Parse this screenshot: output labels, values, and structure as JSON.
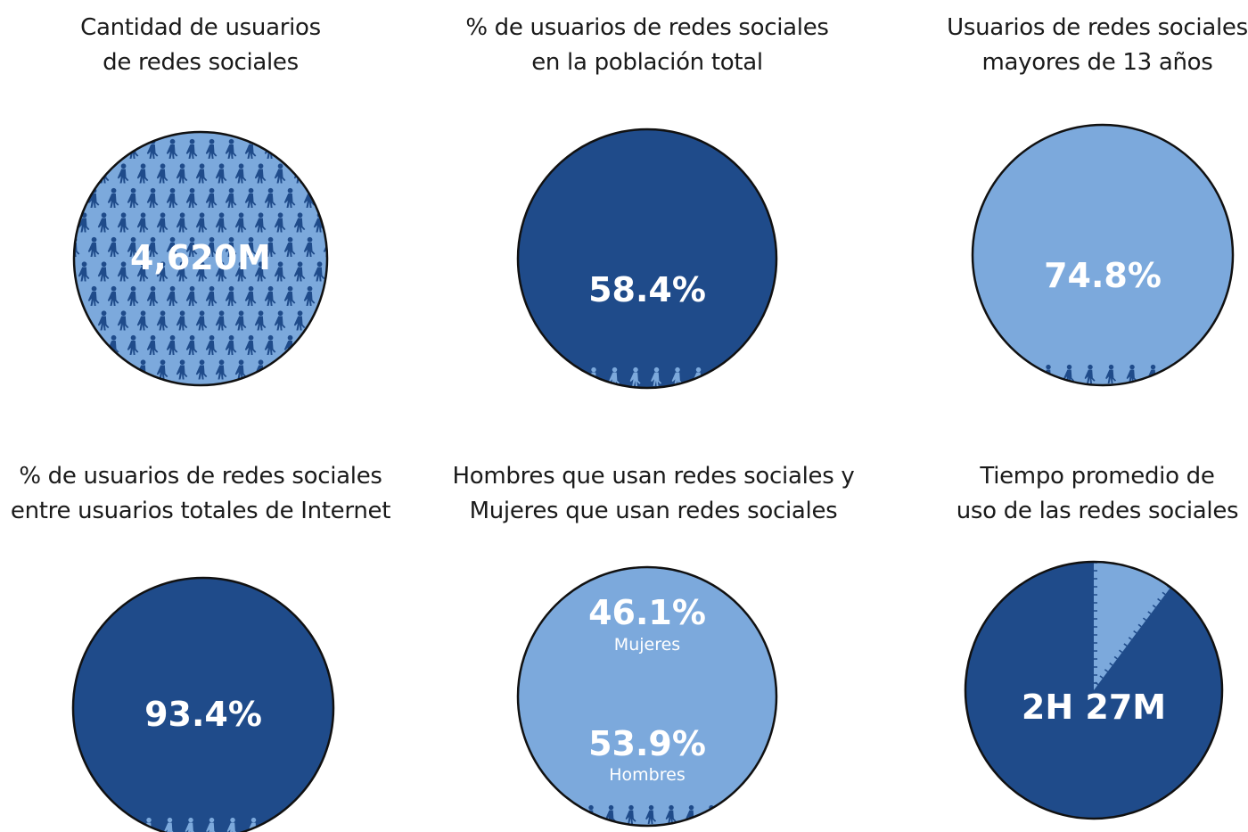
{
  "colors": {
    "dark": "#1f4b8a",
    "light": "#7ca9dc",
    "outline": "#111111",
    "text": "#ffffff"
  },
  "icons": {
    "person": "walking-person-icon"
  },
  "chart_data": [
    {
      "type": "pie",
      "title_lines": [
        "Cantidad de usuarios",
        "de redes sociales"
      ],
      "value_label": "4,620M",
      "value": 4620,
      "unit": "M"
    },
    {
      "type": "pie",
      "title_lines": [
        "% de usuarios de redes sociales",
        "en la población total"
      ],
      "value_label": "58.4%",
      "value": 58.4
    },
    {
      "type": "pie",
      "title_lines": [
        "Usuarios de redes sociales",
        "mayores de 13 años"
      ],
      "value_label": "74.8%",
      "value": 74.8
    },
    {
      "type": "pie",
      "title_lines": [
        "% de usuarios de redes sociales",
        "entre usuarios totales de Internet"
      ],
      "value_label": "93.4%",
      "value": 93.4
    },
    {
      "type": "pie",
      "title_lines": [
        "Hombres que usan redes sociales y",
        "Mujeres que usan redes sociales"
      ],
      "series": [
        {
          "name": "Mujeres",
          "value": 46.1,
          "value_label": "46.1%"
        },
        {
          "name": "Hombres",
          "value": 53.9,
          "value_label": "53.9%"
        }
      ]
    },
    {
      "type": "pie",
      "title_lines": [
        "Tiempo promedio de",
        "uso de las redes sociales"
      ],
      "value_label": "2H 27M",
      "value_minutes": 147
    }
  ]
}
